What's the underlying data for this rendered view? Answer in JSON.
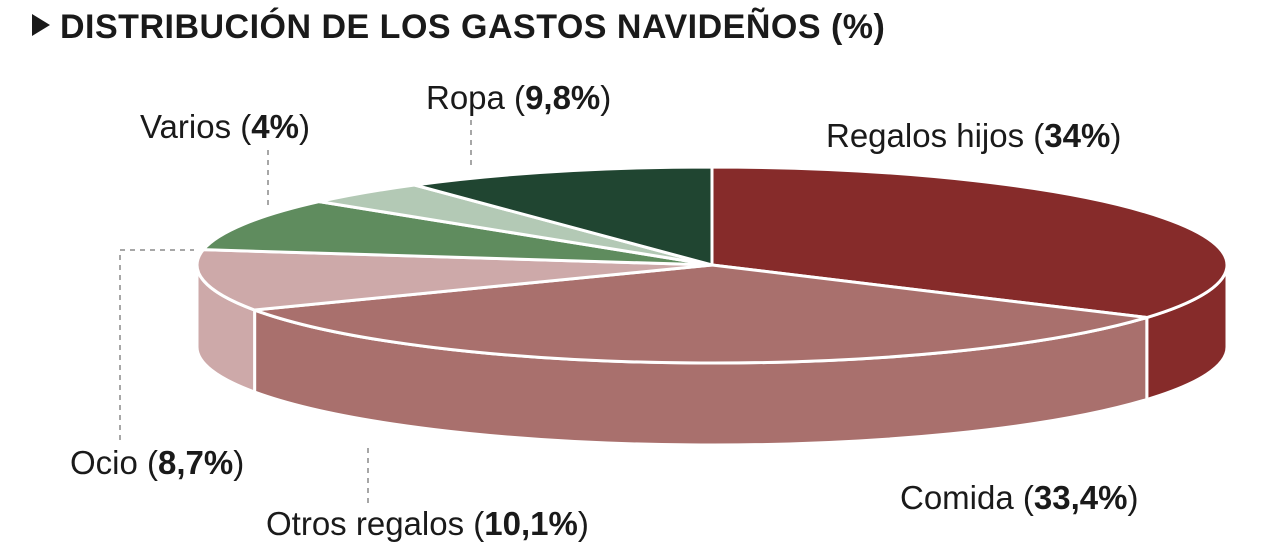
{
  "chart_data": {
    "type": "pie",
    "title": "DISTRIBUCIÓN DE LOS GASTOS NAVIDEÑOS (%)",
    "style": "3d",
    "slices": [
      {
        "label": "Regalos hijos",
        "value": 34,
        "display": "34%",
        "color": "#862b2a"
      },
      {
        "label": "Comida",
        "value": 33.4,
        "display": "33,4%",
        "color": "#a9706d"
      },
      {
        "label": "Otros regalos",
        "value": 10.1,
        "display": "10,1%",
        "color": "#cda9a9"
      },
      {
        "label": "Ocio",
        "value": 8.7,
        "display": "8,7%",
        "color": "#5f8c5e"
      },
      {
        "label": "Varios",
        "value": 4,
        "display": "4%",
        "color": "#b3c9b5"
      },
      {
        "label": "Ropa",
        "value": 9.8,
        "display": "9,8%",
        "color": "#204531"
      }
    ]
  }
}
